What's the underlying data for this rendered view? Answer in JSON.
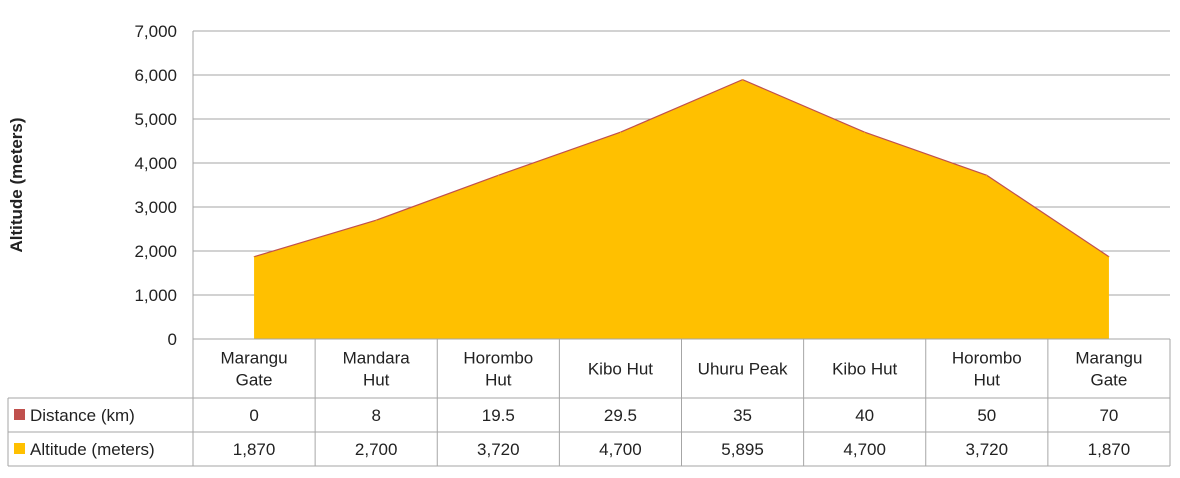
{
  "chart_data": {
    "type": "area",
    "ylabel": "Altitude (meters)",
    "ylim": [
      0,
      7000
    ],
    "yticks": [
      "0",
      "1,000",
      "2,000",
      "3,000",
      "4,000",
      "5,000",
      "6,000",
      "7,000"
    ],
    "ytick_values": [
      0,
      1000,
      2000,
      3000,
      4000,
      5000,
      6000,
      7000
    ],
    "grid": true,
    "categories": [
      [
        "Marangu",
        "Gate"
      ],
      [
        "Mandara",
        "Hut"
      ],
      [
        "Horombo",
        "Hut"
      ],
      [
        "Kibo Hut"
      ],
      [
        "Uhuru Peak"
      ],
      [
        "Kibo Hut"
      ],
      [
        "Horombo",
        "Hut"
      ],
      [
        "Marangu",
        "Gate"
      ]
    ],
    "series": [
      {
        "name": "Distance (km)",
        "color": "#C0504D",
        "values": [
          0,
          8,
          19.5,
          29.5,
          35,
          40,
          50,
          70
        ],
        "labels": [
          "0",
          "8",
          "19.5",
          "29.5",
          "35",
          "40",
          "50",
          "70"
        ]
      },
      {
        "name": "Altitude (meters)",
        "color": "#FFC000",
        "values": [
          1870,
          2700,
          3720,
          4700,
          5895,
          4700,
          3720,
          1870
        ],
        "labels": [
          "1,870",
          "2,700",
          "3,720",
          "4,700",
          "5,895",
          "4,700",
          "3,720",
          "1,870"
        ]
      }
    ]
  }
}
